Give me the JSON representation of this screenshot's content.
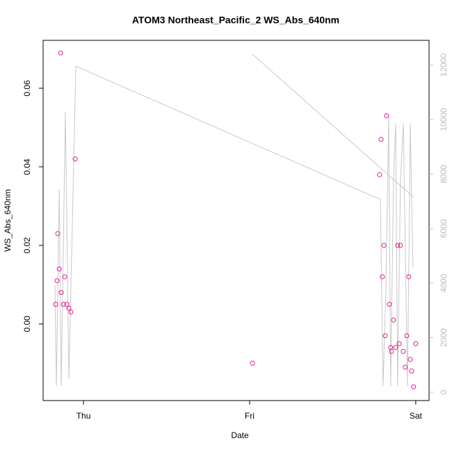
{
  "chart_data": {
    "type": "scatter",
    "title": "ATOM3 Northeast_Pacific_2 WS_Abs_640nm",
    "xlabel": "Date",
    "ylabel": "WS_Abs_640nm",
    "x": [
      -0.167,
      -0.159,
      -0.155,
      -0.146,
      -0.138,
      -0.134,
      -0.121,
      -0.113,
      -0.1,
      -0.088,
      -0.075,
      -0.05,
      1.017,
      1.782,
      1.791,
      1.799,
      1.808,
      1.816,
      1.824,
      1.841,
      1.849,
      1.854,
      1.866,
      1.879,
      1.891,
      1.9,
      1.908,
      1.925,
      1.937,
      1.946,
      1.958,
      1.967,
      1.975,
      1.987,
      2.0
    ],
    "values": [
      0.005,
      0.011,
      0.023,
      0.014,
      0.069,
      0.008,
      0.005,
      0.012,
      0.005,
      0.004,
      0.003,
      0.042,
      -0.01,
      0.038,
      0.047,
      0.012,
      0.02,
      -0.003,
      0.053,
      0.005,
      -0.006,
      -0.007,
      0.001,
      -0.006,
      0.02,
      -0.005,
      0.02,
      -0.007,
      -0.011,
      -0.003,
      0.012,
      -0.009,
      -0.012,
      -0.016,
      -0.005
    ],
    "color": "#e8199a",
    "line": {
      "axis": "y2",
      "color": "#c8c8c8",
      "x": [
        -0.172,
        -0.163,
        -0.146,
        -0.134,
        -0.109,
        -0.088,
        -0.046,
        1.787,
        1.803,
        1.82,
        1.837,
        1.849,
        1.866,
        1.879,
        1.891,
        1.908,
        1.925,
        1.95,
        1.962,
        1.967,
        1.983,
        null,
        1.017,
        1.983
      ],
      "values": [
        3930,
        230,
        7450,
        230,
        10300,
        480,
        11960,
        7070,
        230,
        3670,
        10180,
        230,
        7760,
        9850,
        230,
        7760,
        9850,
        230,
        6730,
        9850,
        4570,
        null,
        12400,
        7170
      ]
    },
    "xlim": [
      -0.243,
      2.08
    ],
    "xticks": [
      {
        "value": 0,
        "label": "Thu"
      },
      {
        "value": 1,
        "label": "Fri"
      },
      {
        "value": 2,
        "label": "Sat"
      }
    ],
    "ylim": [
      -0.0195,
      0.0722
    ],
    "yticks": [
      {
        "value": 0,
        "label": "0.00"
      },
      0.02,
      0.04,
      0.06
    ],
    "y2lim": [
      -306,
      12908
    ],
    "y2ticks": [
      0,
      2000,
      4000,
      6000,
      8000,
      10000,
      12000
    ]
  }
}
